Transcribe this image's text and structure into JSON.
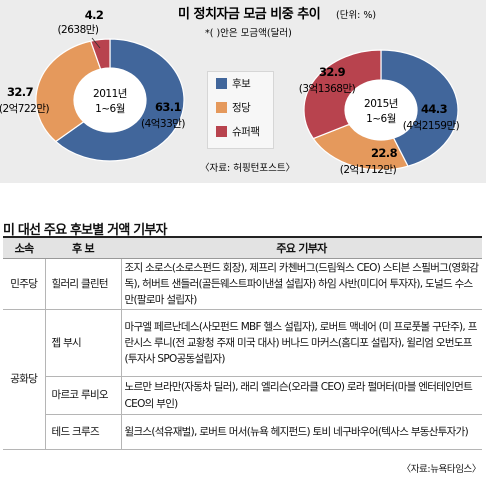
{
  "figure": {
    "title": "미 정치자금 모금 비중 추이",
    "unit": "(단위: %)",
    "note": "*( )안은 모금액(달러)",
    "source": "〈자료: 허핑턴포스트〉"
  },
  "legend": [
    {
      "name": "후보",
      "color": "#41669b"
    },
    {
      "name": "정당",
      "color": "#e5995c"
    },
    {
      "name": "슈퍼팩",
      "color": "#b8434e"
    }
  ],
  "chart_data": [
    {
      "type": "pie",
      "center_label": [
        "2011년",
        "1~6월"
      ],
      "slices": [
        {
          "name": "후보",
          "value": 63.1,
          "label": "63.1",
          "amount": "(4억33만)",
          "color": "#41669b"
        },
        {
          "name": "정당",
          "value": 32.7,
          "label": "32.7",
          "amount": "(2억722만)",
          "color": "#e5995c"
        },
        {
          "name": "슈퍼팩",
          "value": 4.2,
          "label": "4.2",
          "amount": "(2638만)",
          "color": "#b8434e"
        }
      ]
    },
    {
      "type": "pie",
      "center_label": [
        "2015년",
        "1~6월"
      ],
      "slices": [
        {
          "name": "후보",
          "value": 44.3,
          "label": "44.3",
          "amount": "(4억2159만)",
          "color": "#41669b"
        },
        {
          "name": "정당",
          "value": 22.8,
          "label": "22.8",
          "amount": "(2억1712만)",
          "color": "#e5995c"
        },
        {
          "name": "슈퍼팩",
          "value": 32.9,
          "label": "32.9",
          "amount": "(3억1368만)",
          "color": "#b8434e"
        }
      ]
    }
  ],
  "donors": {
    "title": "미 대선 주요 후보별 거액 기부자",
    "headers": {
      "party": "소속",
      "candidate": "후 보",
      "donors": "주요 기부자"
    },
    "rows": [
      {
        "party": "민주당",
        "candidate": "힐러리 클린턴",
        "donors": "조지 소로스(소로스펀드 회장), 제프리 카첸버그(드림웍스 CEO) 스티븐 스필버그(영화감독), 허버트 샌들러(골든웨스트파이낸셜 설립자) 하임 사반(미디어 투자자), 도널드 수스만(팔로마 설립자)"
      },
      {
        "party": "공화당",
        "candidate": "젭 부시",
        "donors": "마구엘 페르난데스(사모펀드 MBF 헬스 설립자), 로버트 맥네어 (미 프로풋볼 구단주), 프란시스 루니(전 교황청 주재 미국 대사) 버나드 마커스(홈디포 설립자), 윌리엄 오번도프(투자사 SPO공동설립자)"
      },
      {
        "party": "",
        "candidate": "마르코 루비오",
        "donors": "노르만 브라만(자동차 딜러), 래리 엘리슨(오라클 CEO) 로라 펄머터(마블 엔터테인먼트 CEO의 부인)"
      },
      {
        "party": "",
        "candidate": "테드 크루즈",
        "donors": "윌크스(석유재벌), 로버트 머서(뉴욕 헤지펀드) 토비 네구바우어(텍사스 부동산투자가)"
      }
    ],
    "source": "〈자료:뉴욕타임스〉"
  }
}
